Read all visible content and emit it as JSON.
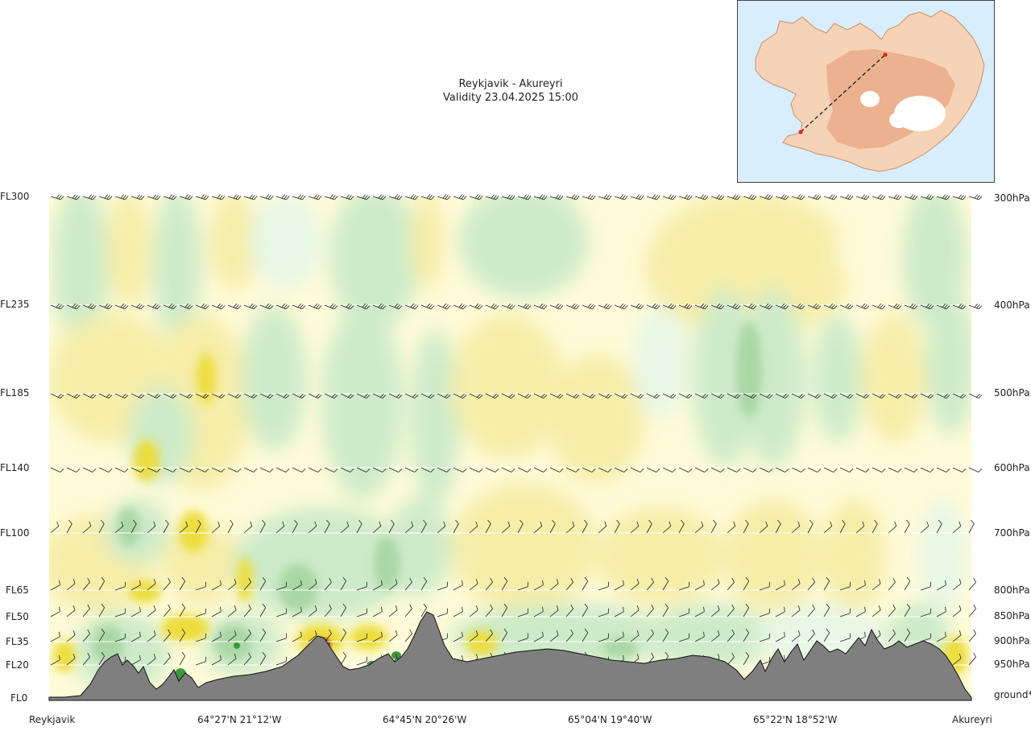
{
  "chart_data": {
    "type": "cross-section",
    "title": "Reykjavik - Akureyri",
    "subtitle": "Validity 23.04.2025 15:00",
    "flight_levels": [
      {
        "label": "FL300",
        "pressure": "300hPa"
      },
      {
        "label": "FL235",
        "pressure": "400hPa"
      },
      {
        "label": "FL185",
        "pressure": "500hPa"
      },
      {
        "label": "FL140",
        "pressure": "600hPa"
      },
      {
        "label": "FL100",
        "pressure": "700hPa"
      },
      {
        "label": "FL65",
        "pressure": "800hPa"
      },
      {
        "label": "FL50",
        "pressure": "850hPa"
      },
      {
        "label": "FL35",
        "pressure": "900hPa"
      },
      {
        "label": "FL20",
        "pressure": "950hPa"
      },
      {
        "label": "FL0",
        "pressure": "ground*"
      }
    ],
    "x_labels": [
      "Reykjavik",
      "64°27'N 21°12'W",
      "64°45'N 20°26'W",
      "65°04'N 19°40'W",
      "65°22'N 18°52'W",
      "Akureyri"
    ],
    "route": {
      "start": "Reykjavik",
      "end": "Akureyri"
    },
    "colors": {
      "green_light": "#e8f7e6",
      "green_mid": "#cdebc9",
      "green_dark": "#a9d7a4",
      "green_strong": "#3c9a3c",
      "yellow_light": "#fffbd8",
      "yellow_mid": "#f6eda8",
      "yellow_strong": "#ecdd3c",
      "orange": "#e8a038",
      "brown": "#a24a18",
      "terrain": "#7f7f7f",
      "sea": "#d9eefc",
      "land": "#f4c9a4"
    }
  }
}
